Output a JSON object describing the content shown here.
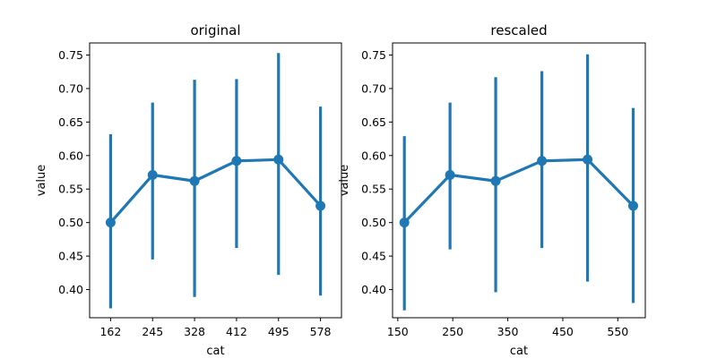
{
  "chart_data": [
    {
      "type": "line",
      "title": "original",
      "xlabel": "cat",
      "ylabel": "value",
      "x": [
        162,
        245,
        328,
        412,
        495,
        578
      ],
      "x_tick_labels": [
        "162",
        "245",
        "328",
        "412",
        "495",
        "578"
      ],
      "x_scale": "categorical",
      "xlim": [
        -0.5,
        5.5
      ],
      "y_ticks": [
        "0.40",
        "0.45",
        "0.50",
        "0.55",
        "0.60",
        "0.65",
        "0.70",
        "0.75"
      ],
      "ylim": [
        0.358,
        0.768
      ],
      "series": [
        {
          "values": [
            0.5,
            0.571,
            0.562,
            0.592,
            0.594,
            0.525
          ],
          "ci_low": [
            0.372,
            0.445,
            0.389,
            0.462,
            0.422,
            0.391
          ],
          "ci_high": [
            0.632,
            0.679,
            0.713,
            0.714,
            0.753,
            0.673
          ],
          "color": "#1f77b4"
        }
      ],
      "grid": false
    },
    {
      "type": "line",
      "title": "rescaled",
      "xlabel": "cat",
      "ylabel": "value",
      "x": [
        162,
        245,
        328,
        412,
        495,
        578
      ],
      "x_ticks": [
        150,
        250,
        350,
        450,
        550
      ],
      "x_tick_labels": [
        "150",
        "250",
        "350",
        "450",
        "550"
      ],
      "x_scale": "linear",
      "xlim": [
        140.5,
        600
      ],
      "y_ticks": [
        "0.40",
        "0.45",
        "0.50",
        "0.55",
        "0.60",
        "0.65",
        "0.70",
        "0.75"
      ],
      "ylim": [
        0.358,
        0.768
      ],
      "series": [
        {
          "values": [
            0.5,
            0.571,
            0.562,
            0.592,
            0.594,
            0.525
          ],
          "ci_low": [
            0.369,
            0.46,
            0.396,
            0.462,
            0.412,
            0.38
          ],
          "ci_high": [
            0.629,
            0.679,
            0.717,
            0.726,
            0.751,
            0.671
          ],
          "color": "#1f77b4"
        }
      ],
      "grid": false
    }
  ]
}
